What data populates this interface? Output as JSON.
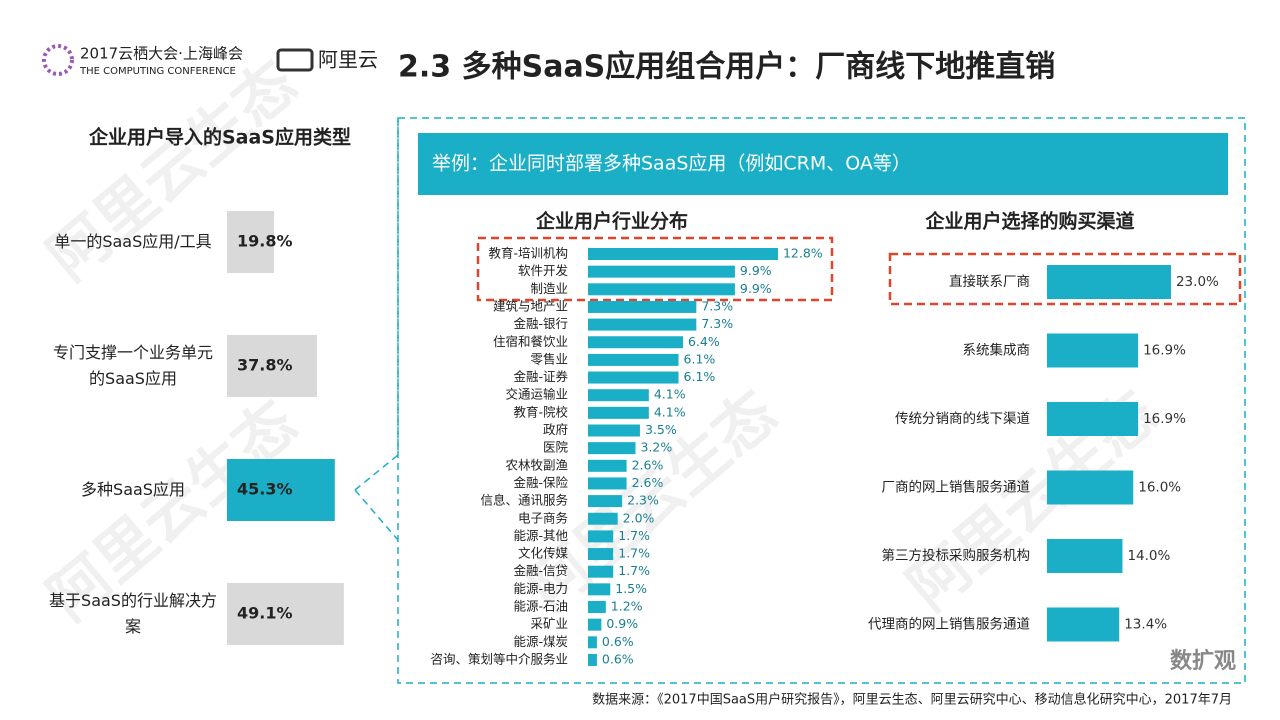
{
  "header": {
    "conference": "2017云栖大会·上海峰会",
    "conference_en": "THE COMPUTING CONFERENCE",
    "brand": "阿里云",
    "title": "2.3 多种SaaS应用组合用户：厂商线下地推直销"
  },
  "banner": "举例：企业同时部署多种SaaS应用（例如CRM、OA等）",
  "watermark": "阿里云生态",
  "source": "数据来源：《2017中国SaaS用户研究报告》，阿里云生态、阿里云研究中心、移动信息化研究中心，2017年7月",
  "footer_logo": "数扩观",
  "chart_data": [
    {
      "type": "bar",
      "orientation": "horizontal",
      "title": "企业用户导入的SaaS应用类型",
      "categories": [
        "单一的SaaS应用/工具",
        "专门支撑一个业务单元的SaaS应用",
        "多种SaaS应用",
        "基于SaaS的行业解决方案"
      ],
      "values": [
        19.8,
        37.8,
        45.3,
        49.1
      ],
      "value_labels": [
        "19.8%",
        "37.8%",
        "45.3%",
        "49.1%"
      ],
      "colors": [
        "#d9d9d9",
        "#d9d9d9",
        "#1aafc7",
        "#d9d9d9"
      ]
    },
    {
      "type": "bar",
      "orientation": "horizontal",
      "title": "企业用户行业分布",
      "categories": [
        "教育-培训机构",
        "软件开发",
        "制造业",
        "建筑与地产业",
        "金融-银行",
        "住宿和餐饮业",
        "零售业",
        "金融-证券",
        "交通运输业",
        "教育-院校",
        "政府",
        "医院",
        "农林牧副渔",
        "金融-保险",
        "信息、通讯服务",
        "电子商务",
        "能源-其他",
        "文化传媒",
        "金融-信贷",
        "能源-电力",
        "能源-石油",
        "采矿业",
        "能源-煤炭",
        "咨询、策划等中介服务业"
      ],
      "values": [
        12.8,
        9.9,
        9.9,
        7.3,
        7.3,
        6.4,
        6.1,
        6.1,
        4.1,
        4.1,
        3.5,
        3.2,
        2.6,
        2.6,
        2.3,
        2.0,
        1.7,
        1.7,
        1.7,
        1.5,
        1.2,
        0.9,
        0.6,
        0.6
      ],
      "value_labels": [
        "12.8%",
        "9.9%",
        "9.9%",
        "7.3%",
        "7.3%",
        "6.4%",
        "6.1%",
        "6.1%",
        "4.1%",
        "4.1%",
        "3.5%",
        "3.2%",
        "2.6%",
        "2.6%",
        "2.3%",
        "2.0%",
        "1.7%",
        "1.7%",
        "1.7%",
        "1.5%",
        "1.2%",
        "0.9%",
        "0.6%",
        "0.6%"
      ],
      "color": "#1aafc7"
    },
    {
      "type": "bar",
      "orientation": "horizontal",
      "title": "企业用户选择的购买渠道",
      "categories": [
        "直接联系厂商",
        "系统集成商",
        "传统分销商的线下渠道",
        "厂商的网上销售服务通道",
        "第三方投标采购服务机构",
        "代理商的网上销售服务通道"
      ],
      "values": [
        23.0,
        16.9,
        16.9,
        16.0,
        14.0,
        13.4
      ],
      "value_labels": [
        "23.0%",
        "16.9%",
        "16.9%",
        "16.0%",
        "14.0%",
        "13.4%"
      ],
      "color": "#1aafc7"
    }
  ]
}
